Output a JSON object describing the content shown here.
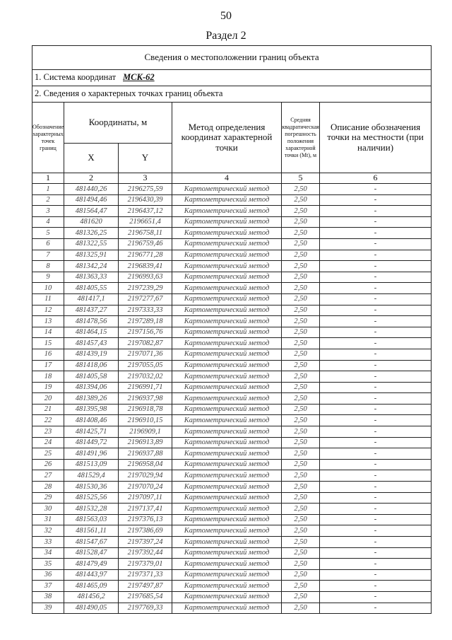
{
  "page_number": "50",
  "section": "Раздел 2",
  "table_title": "Сведения о местоположении границ объекта",
  "coord_system_label": "1. Система координат",
  "coord_system_value": "МСК-62",
  "points_label": "2. Сведения о характерных точках границ объекта",
  "headers": {
    "point": "Обозначение характерных точек границ",
    "coords": "Координаты, м",
    "x": "X",
    "y": "Y",
    "method": "Метод определения координат характерной точки",
    "error": "Средняя квадратическая погрешность положения характерной точки (Mt), м",
    "description": "Описание обозначения точки на местности (при наличии)"
  },
  "column_numbers": [
    "1",
    "2",
    "3",
    "4",
    "5",
    "6"
  ],
  "rows": [
    [
      "1",
      "481440,26",
      "2196275,59",
      "Картометрический метод",
      "2,50",
      "-"
    ],
    [
      "2",
      "481494,46",
      "2196430,39",
      "Картометрический метод",
      "2,50",
      "-"
    ],
    [
      "3",
      "481564,47",
      "2196437,12",
      "Картометрический метод",
      "2,50",
      "-"
    ],
    [
      "4",
      "481620",
      "2196651,4",
      "Картометрический метод",
      "2,50",
      "-"
    ],
    [
      "5",
      "481326,25",
      "2196758,11",
      "Картометрический метод",
      "2,50",
      "-"
    ],
    [
      "6",
      "481322,55",
      "2196759,46",
      "Картометрический метод",
      "2,50",
      "-"
    ],
    [
      "7",
      "481325,91",
      "2196771,28",
      "Картометрический метод",
      "2,50",
      "-"
    ],
    [
      "8",
      "481342,24",
      "2196839,41",
      "Картометрический метод",
      "2,50",
      "-"
    ],
    [
      "9",
      "481363,33",
      "2196993,63",
      "Картометрический метод",
      "2,50",
      "-"
    ],
    [
      "10",
      "481405,55",
      "2197239,29",
      "Картометрический метод",
      "2,50",
      "-"
    ],
    [
      "11",
      "481417,1",
      "2197277,67",
      "Картометрический метод",
      "2,50",
      "-"
    ],
    [
      "12",
      "481437,27",
      "2197333,33",
      "Картометрический метод",
      "2,50",
      "-"
    ],
    [
      "13",
      "481478,56",
      "2197289,18",
      "Картометрический метод",
      "2,50",
      "-"
    ],
    [
      "14",
      "481464,15",
      "2197156,76",
      "Картометрический метод",
      "2,50",
      "-"
    ],
    [
      "15",
      "481457,43",
      "2197082,87",
      "Картометрический метод",
      "2,50",
      "-"
    ],
    [
      "16",
      "481439,19",
      "2197071,36",
      "Картометрический метод",
      "2,50",
      "-"
    ],
    [
      "17",
      "481418,06",
      "2197055,05",
      "Картометрический метод",
      "2,50",
      "-"
    ],
    [
      "18",
      "481405,58",
      "2197032,02",
      "Картометрический метод",
      "2,50",
      "-"
    ],
    [
      "19",
      "481394,06",
      "2196991,71",
      "Картометрический метод",
      "2,50",
      "-"
    ],
    [
      "20",
      "481389,26",
      "2196937,98",
      "Картометрический метод",
      "2,50",
      "-"
    ],
    [
      "21",
      "481395,98",
      "2196918,78",
      "Картометрический метод",
      "2,50",
      "-"
    ],
    [
      "22",
      "481408,46",
      "2196910,15",
      "Картометрический метод",
      "2,50",
      "-"
    ],
    [
      "23",
      "481425,71",
      "2196909,1",
      "Картометрический метод",
      "2,50",
      "-"
    ],
    [
      "24",
      "481449,72",
      "2196913,89",
      "Картометрический метод",
      "2,50",
      "-"
    ],
    [
      "25",
      "481491,96",
      "2196937,88",
      "Картометрический метод",
      "2,50",
      "-"
    ],
    [
      "26",
      "481513,09",
      "2196958,04",
      "Картометрический метод",
      "2,50",
      "-"
    ],
    [
      "27",
      "481529,4",
      "2197029,94",
      "Картометрический метод",
      "2,50",
      "-"
    ],
    [
      "28",
      "481530,36",
      "2197070,24",
      "Картометрический метод",
      "2,50",
      "-"
    ],
    [
      "29",
      "481525,56",
      "2197097,11",
      "Картометрический метод",
      "2,50",
      "-"
    ],
    [
      "30",
      "481532,28",
      "2197137,41",
      "Картометрический метод",
      "2,50",
      "-"
    ],
    [
      "31",
      "481563,03",
      "2197376,13",
      "Картометрический метод",
      "2,50",
      "-"
    ],
    [
      "32",
      "481561,11",
      "2197386,69",
      "Картометрический метод",
      "2,50",
      "-"
    ],
    [
      "33",
      "481547,67",
      "2197397,24",
      "Картометрический метод",
      "2,50",
      "-"
    ],
    [
      "34",
      "481528,47",
      "2197392,44",
      "Картометрический метод",
      "2,50",
      "-"
    ],
    [
      "35",
      "481479,49",
      "2197379,01",
      "Картометрический метод",
      "2,50",
      "-"
    ],
    [
      "36",
      "481443,97",
      "2197371,33",
      "Картометрический метод",
      "2,50",
      "-"
    ],
    [
      "37",
      "481465,09",
      "2197497,87",
      "Картометрический метод",
      "2,50",
      "-"
    ],
    [
      "38",
      "481456,2",
      "2197685,54",
      "Картометрический метод",
      "2,50",
      "-"
    ],
    [
      "39",
      "481490,05",
      "2197769,33",
      "Картометрический метод",
      "2,50",
      "-"
    ]
  ]
}
